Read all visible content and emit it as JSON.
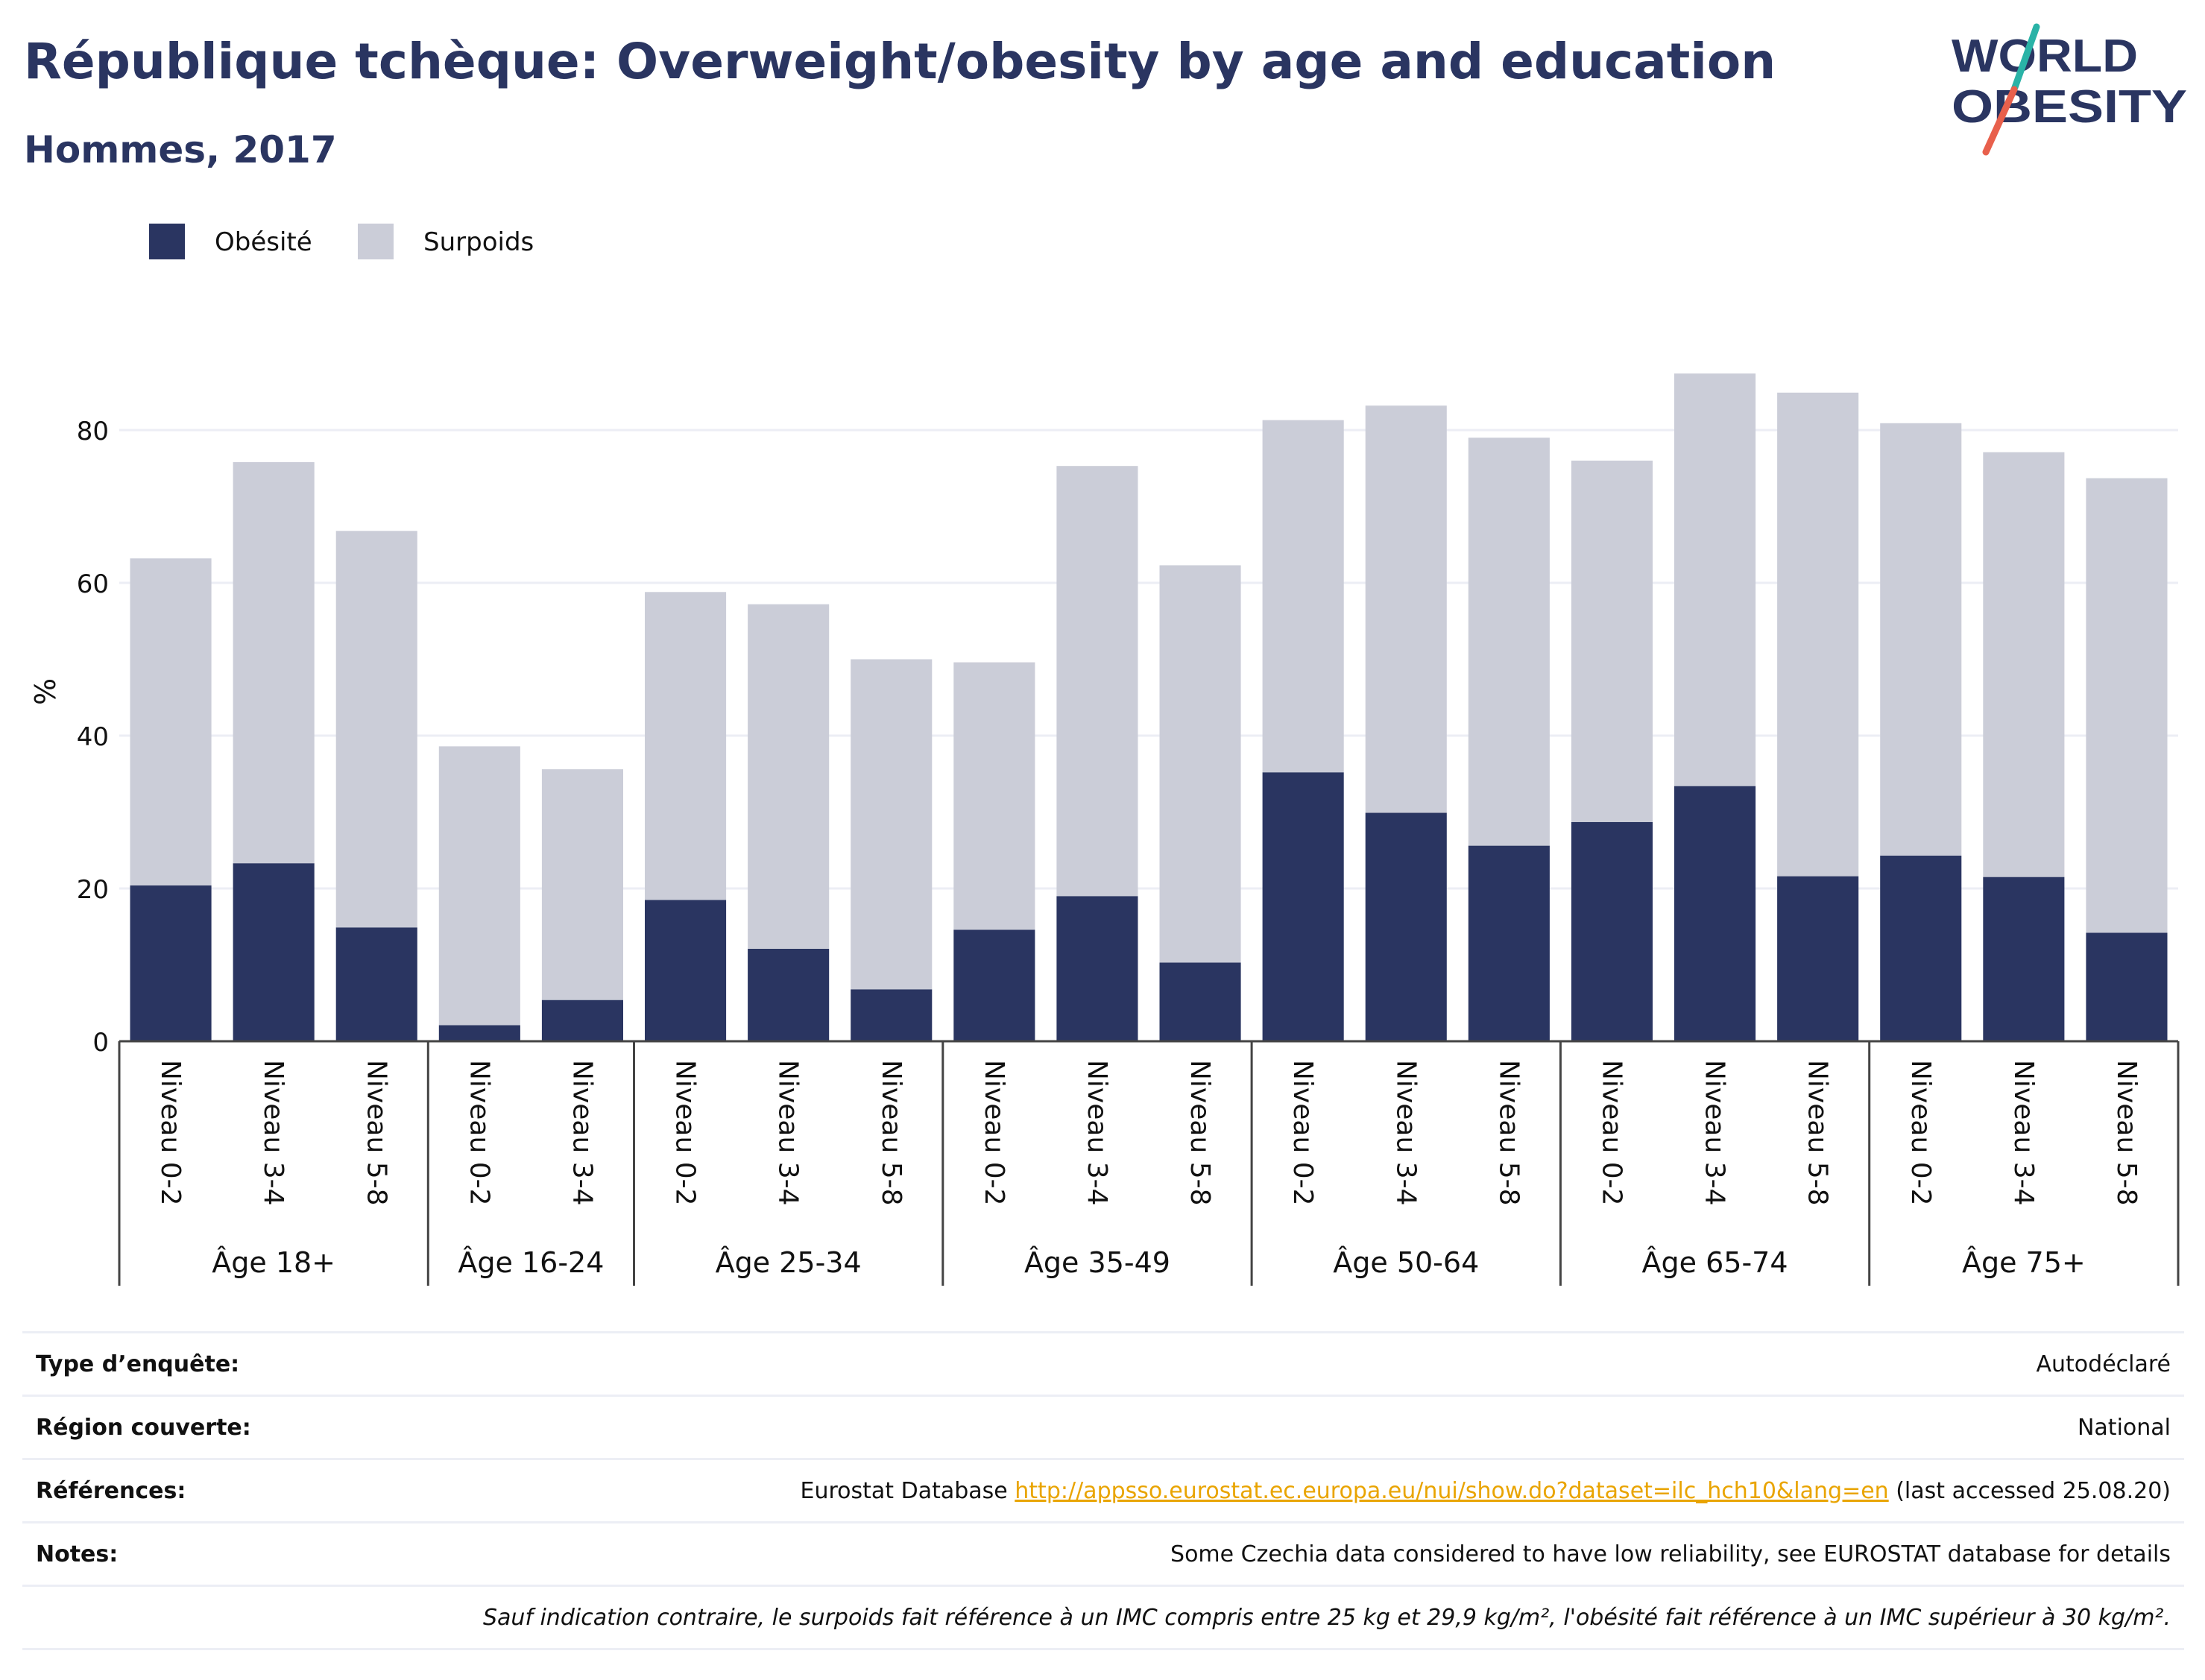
{
  "header": {
    "title": "République tchèque: Overweight/obesity by age and education",
    "subtitle": "Hommes, 2017"
  },
  "logo": {
    "line1": "WORLD",
    "line2": "OBESITY",
    "colors": {
      "text": "#2a3561",
      "slash_top": "#2ab3a7",
      "slash_bottom": "#e8604c"
    }
  },
  "colors": {
    "obesite": "#2a3561",
    "surpoids": "#cbcdd8",
    "grid": "#eceef5",
    "axis": "#444444"
  },
  "chart_data": {
    "type": "bar",
    "stacked": true,
    "ylabel": "%",
    "ylim": [
      0,
      90
    ],
    "yticks": [
      0,
      20,
      40,
      60,
      80
    ],
    "grid": true,
    "legend_position": "top-left",
    "categories": [
      "Niveau 0-2",
      "Niveau 3-4",
      "Niveau 5-8",
      "Niveau 0-2",
      "Niveau 3-4",
      "Niveau 0-2",
      "Niveau 3-4",
      "Niveau 5-8",
      "Niveau 0-2",
      "Niveau 3-4",
      "Niveau 5-8",
      "Niveau 0-2",
      "Niveau 3-4",
      "Niveau 5-8",
      "Niveau 0-2",
      "Niveau 3-4",
      "Niveau 5-8",
      "Niveau 0-2",
      "Niveau 3-4",
      "Niveau 5-8"
    ],
    "groups": [
      {
        "label": "Âge 18+",
        "count": 3
      },
      {
        "label": "Âge 16-24",
        "count": 2
      },
      {
        "label": "Âge 25-34",
        "count": 3
      },
      {
        "label": "Âge 35-49",
        "count": 3
      },
      {
        "label": "Âge 50-64",
        "count": 3
      },
      {
        "label": "Âge 65-74",
        "count": 3
      },
      {
        "label": "Âge 75+",
        "count": 3
      }
    ],
    "series": [
      {
        "name": "Obésité",
        "values": [
          20.4,
          23.3,
          14.9,
          2.1,
          5.4,
          18.5,
          12.1,
          6.8,
          14.6,
          19.0,
          10.3,
          35.2,
          29.9,
          25.6,
          28.7,
          33.4,
          21.6,
          24.3,
          21.5,
          14.2
        ]
      },
      {
        "name": "Surpoids",
        "values": [
          42.8,
          52.5,
          51.9,
          36.5,
          30.2,
          40.3,
          45.1,
          43.2,
          35.0,
          56.3,
          52.0,
          46.1,
          53.3,
          53.4,
          47.3,
          54.0,
          63.3,
          56.6,
          55.6,
          59.5
        ]
      }
    ]
  },
  "meta": [
    {
      "label": "Type d’enquête:",
      "value": "Autodéclaré"
    },
    {
      "label": "Région couverte:",
      "value": "National"
    },
    {
      "label": "Références:",
      "value_prefix": "Eurostat Database ",
      "link": "http://appsso.eurostat.ec.europa.eu/nui/show.do?dataset=ilc_hch10&lang=en",
      "value_suffix": " (last accessed 25.08.20)"
    },
    {
      "label": "Notes:",
      "value": "Some Czechia data considered to have low reliability, see EUROSTAT database for details"
    }
  ],
  "footnote": "Sauf indication contraire, le surpoids fait référence à un IMC compris entre 25 kg et 29,9 kg/m², l'obésité fait référence à un IMC supérieur à 30 kg/m²."
}
